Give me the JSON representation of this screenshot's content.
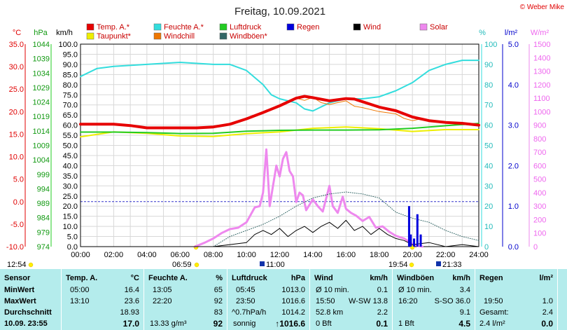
{
  "page": {
    "title": "Freitag, 10.09.2021",
    "copyright": "© Weber Mike"
  },
  "legend": [
    {
      "label": "Temp. A.*",
      "color": "#e60000"
    },
    {
      "label": "Feuchte A.*",
      "color": "#33dddd"
    },
    {
      "label": "Luftdruck",
      "color": "#22cc22"
    },
    {
      "label": "Regen",
      "color": "#0000dd"
    },
    {
      "label": "Wind",
      "color": "#000000"
    },
    {
      "label": "Solar",
      "color": "#ee88ee"
    },
    {
      "label": "Taupunkt*",
      "color": "#eeee00"
    },
    {
      "label": "Windchill",
      "color": "#ee7700"
    },
    {
      "label": "Windböen*",
      "color": "#336666"
    }
  ],
  "axes": {
    "units": {
      "temp": "°C",
      "hpa": "hPa",
      "kmh": "km/h",
      "pct": "%",
      "rain": "l/m²",
      "solar": "W/m²"
    },
    "temp_ticks": [
      "35.0",
      "30.0",
      "25.0",
      "20.0",
      "15.0",
      "10.0",
      "5.0",
      "0.0",
      "-5.0",
      "-10.0"
    ],
    "hpa_ticks": [
      "1044",
      "1039",
      "1034",
      "1029",
      "1024",
      "1019",
      "1014",
      "1009",
      "1004",
      "999",
      "994",
      "989",
      "984",
      "979",
      "974"
    ],
    "kmh_ticks": [
      "100.0",
      "95.0",
      "90.0",
      "85.0",
      "80.0",
      "75.0",
      "70.0",
      "65.0",
      "60.0",
      "55.0",
      "50.0",
      "45.0",
      "40.0",
      "35.0",
      "30.0",
      "25.0",
      "20.0",
      "15.0",
      "10.0",
      "5.0",
      "0.0"
    ],
    "pct_ticks": [
      "100",
      "90",
      "80",
      "70",
      "60",
      "50",
      "40",
      "30",
      "20",
      "10",
      "0"
    ],
    "rain_ticks": [
      "5.0",
      "4.0",
      "3.0",
      "2.0",
      "1.0",
      "0.0"
    ],
    "solar_ticks": [
      "1500",
      "1400",
      "1300",
      "1200",
      "1100",
      "1000",
      "900",
      "800",
      "700",
      "600",
      "500",
      "400",
      "300",
      "200",
      "100",
      "0"
    ],
    "time_ticks": [
      "00:00",
      "02:00",
      "04:00",
      "06:00",
      "08:00",
      "10:00",
      "12:00",
      "14:00",
      "16:00",
      "18:00",
      "20:00",
      "22:00",
      "24:00"
    ]
  },
  "sun_markers": {
    "left": "12:54",
    "rise": "06:59",
    "transit": "11:00",
    "set": "19:54",
    "night": "21:33"
  },
  "chart_data": {
    "type": "line",
    "x_range_hours": [
      0,
      24
    ],
    "temp_range": [
      -10,
      35
    ],
    "kmh_range": [
      0,
      100
    ],
    "series": [
      {
        "name": "Temp. A.*",
        "unit": "°C",
        "points": [
          [
            0,
            17.2
          ],
          [
            2,
            17.2
          ],
          [
            3,
            16.9
          ],
          [
            4,
            16.4
          ],
          [
            6,
            16.4
          ],
          [
            7,
            16.4
          ],
          [
            8,
            16.6
          ],
          [
            9,
            17.2
          ],
          [
            10,
            18.4
          ],
          [
            11,
            19.8
          ],
          [
            12,
            21.3
          ],
          [
            13,
            23.0
          ],
          [
            13.5,
            23.4
          ],
          [
            14,
            23.1
          ],
          [
            15,
            22.4
          ],
          [
            16,
            22.9
          ],
          [
            16.5,
            22.8
          ],
          [
            17,
            22.2
          ],
          [
            18,
            21.0
          ],
          [
            19,
            20.2
          ],
          [
            20,
            18.8
          ],
          [
            21,
            18.0
          ],
          [
            22,
            17.6
          ],
          [
            23,
            17.4
          ],
          [
            24,
            17.0
          ]
        ]
      },
      {
        "name": "Feuchte A.*",
        "unit": "%",
        "points": [
          [
            0,
            84
          ],
          [
            1,
            88
          ],
          [
            2,
            89
          ],
          [
            4,
            90
          ],
          [
            6,
            91
          ],
          [
            8,
            90
          ],
          [
            9,
            90
          ],
          [
            10,
            87
          ],
          [
            11,
            80
          ],
          [
            11.5,
            75
          ],
          [
            12,
            73
          ],
          [
            13,
            71
          ],
          [
            13.5,
            68
          ],
          [
            14,
            67
          ],
          [
            15,
            71
          ],
          [
            16,
            73
          ],
          [
            17,
            73
          ],
          [
            18,
            74
          ],
          [
            19,
            77
          ],
          [
            20,
            81
          ],
          [
            21,
            87
          ],
          [
            22,
            90
          ],
          [
            23,
            92
          ],
          [
            24,
            92
          ]
        ]
      },
      {
        "name": "Luftdruck",
        "unit": "hPa",
        "points": [
          [
            0,
            1013.6
          ],
          [
            2,
            1013.6
          ],
          [
            4,
            1013.4
          ],
          [
            6,
            1013.1
          ],
          [
            8,
            1013.2
          ],
          [
            10,
            1013.9
          ],
          [
            12,
            1014.2
          ],
          [
            14,
            1014.3
          ],
          [
            16,
            1014.3
          ],
          [
            18,
            1014.4
          ],
          [
            20,
            1014.9
          ],
          [
            22,
            1015.8
          ],
          [
            24,
            1016.6
          ]
        ]
      },
      {
        "name": "Taupunkt*",
        "unit": "°C",
        "points": [
          [
            0,
            14.4
          ],
          [
            2,
            15.5
          ],
          [
            4,
            15.2
          ],
          [
            6,
            14.6
          ],
          [
            8,
            14.5
          ],
          [
            10,
            15.1
          ],
          [
            12,
            15.5
          ],
          [
            14,
            16.3
          ],
          [
            16,
            16.6
          ],
          [
            18,
            16.2
          ],
          [
            20,
            15.6
          ],
          [
            22,
            16.0
          ],
          [
            24,
            16.0
          ]
        ]
      },
      {
        "name": "Windchill",
        "unit": "°C",
        "points": [
          [
            12,
            21.3
          ],
          [
            13,
            23.0
          ],
          [
            13.5,
            22.5
          ],
          [
            14,
            23.2
          ],
          [
            14.5,
            22.0
          ],
          [
            15,
            21.6
          ],
          [
            16,
            22.4
          ],
          [
            16.5,
            21.2
          ],
          [
            17,
            20.9
          ],
          [
            18,
            20.0
          ],
          [
            19,
            19.5
          ],
          [
            19.5,
            18.5
          ],
          [
            20,
            18.0
          ],
          [
            20.5,
            18.4
          ],
          [
            21,
            18.0
          ]
        ]
      },
      {
        "name": "Wind",
        "unit": "km/h",
        "points": [
          [
            0,
            0
          ],
          [
            6,
            0
          ],
          [
            8,
            0
          ],
          [
            9,
            1
          ],
          [
            10,
            2
          ],
          [
            10.5,
            6
          ],
          [
            11,
            8
          ],
          [
            11.5,
            6
          ],
          [
            12,
            9
          ],
          [
            12.5,
            5
          ],
          [
            13,
            8
          ],
          [
            13.5,
            10
          ],
          [
            14,
            7
          ],
          [
            14.5,
            10
          ],
          [
            15,
            12
          ],
          [
            15.5,
            9
          ],
          [
            16,
            13
          ],
          [
            16.5,
            8
          ],
          [
            17,
            10
          ],
          [
            17.5,
            6
          ],
          [
            18,
            9
          ],
          [
            18.5,
            6
          ],
          [
            19,
            4
          ],
          [
            19.5,
            3
          ],
          [
            20,
            1
          ],
          [
            21,
            2
          ],
          [
            22,
            0
          ],
          [
            23,
            1
          ],
          [
            24,
            0
          ]
        ]
      },
      {
        "name": "Windböen*",
        "unit": "km/h",
        "points": [
          [
            8,
            0
          ],
          [
            9,
            5
          ],
          [
            10,
            8
          ],
          [
            11,
            11
          ],
          [
            12,
            15
          ],
          [
            13,
            20
          ],
          [
            14,
            24
          ],
          [
            15,
            26
          ],
          [
            16,
            27
          ],
          [
            17,
            26
          ],
          [
            18,
            24
          ],
          [
            19,
            17
          ],
          [
            20,
            14
          ],
          [
            21,
            12
          ],
          [
            22,
            8
          ],
          [
            23,
            5
          ],
          [
            24,
            3
          ]
        ]
      },
      {
        "name": "Solar",
        "unit": "W/m²",
        "points": [
          [
            6.9,
            0
          ],
          [
            7.5,
            30
          ],
          [
            8,
            60
          ],
          [
            8.5,
            100
          ],
          [
            9,
            130
          ],
          [
            9.5,
            140
          ],
          [
            10,
            180
          ],
          [
            10.5,
            290
          ],
          [
            10.8,
            300
          ],
          [
            11,
            400
          ],
          [
            11.2,
            720
          ],
          [
            11.4,
            300
          ],
          [
            11.6,
            450
          ],
          [
            11.8,
            600
          ],
          [
            12,
            520
          ],
          [
            12.2,
            650
          ],
          [
            12.4,
            700
          ],
          [
            12.6,
            560
          ],
          [
            12.8,
            520
          ],
          [
            13,
            330
          ],
          [
            13.2,
            400
          ],
          [
            13.4,
            380
          ],
          [
            13.6,
            270
          ],
          [
            14,
            350
          ],
          [
            14.3,
            300
          ],
          [
            14.6,
            260
          ],
          [
            15,
            450
          ],
          [
            15.2,
            300
          ],
          [
            15.5,
            250
          ],
          [
            15.8,
            370
          ],
          [
            16,
            280
          ],
          [
            16.3,
            250
          ],
          [
            16.6,
            230
          ],
          [
            17,
            190
          ],
          [
            17.4,
            220
          ],
          [
            17.8,
            140
          ],
          [
            18.2,
            150
          ],
          [
            18.6,
            110
          ],
          [
            19,
            80
          ],
          [
            19.5,
            60
          ],
          [
            20,
            20
          ],
          [
            20.3,
            5
          ],
          [
            20.6,
            0
          ]
        ]
      },
      {
        "name": "Regen",
        "unit": "l/m²",
        "points": [
          [
            19.5,
            0
          ],
          [
            19.8,
            1.0
          ],
          [
            19.9,
            0.3
          ],
          [
            20.1,
            0.2
          ],
          [
            20.3,
            0.8
          ],
          [
            20.5,
            0.3
          ],
          [
            20.7,
            0
          ]
        ]
      }
    ]
  },
  "table": {
    "headers": {
      "sensor": "Sensor",
      "temp": "Temp. A.",
      "temp_u": "°C",
      "feuchte": "Feuchte A.",
      "feuchte_u": "%",
      "druck": "Luftdruck",
      "druck_u": "hPa",
      "wind": "Wind",
      "wind_u": "km/h",
      "boeen": "Windböen",
      "boeen_u": "km/h",
      "regen": "Regen",
      "regen_u": "l/m²"
    },
    "rows": {
      "min": {
        "label": "MinWert",
        "t_time": "05:00",
        "t_val": "16.4",
        "f_time": "13:05",
        "f_val": "65",
        "p_time": "05:45",
        "p_val": "1013.0",
        "w_desc": "Ø 10 min.",
        "w_val": "0.1",
        "b_desc": "Ø 10 min.",
        "b_val": "3.4"
      },
      "max": {
        "label": "MaxWert",
        "t_time": "13:10",
        "t_val": "23.6",
        "f_time": "22:20",
        "f_val": "92",
        "p_time": "23:50",
        "p_val": "1016.6",
        "w_time": "15:50",
        "w_desc": "W-SW 13.8",
        "b_time": "16:20",
        "b_desc": "S-SO 36.0",
        "r_time": "19:50",
        "r_val": "1.0"
      },
      "avg": {
        "label": "Durchschnitt",
        "t_val": "18.93",
        "f_val": "83",
        "p_desc": "^0.7hPa/h",
        "p_val": "1014.2",
        "w_desc": "52.8 km",
        "w_val": "2.2",
        "b_val": "9.1",
        "r_desc": "Gesamt:",
        "r_val": "2.4"
      },
      "cur": {
        "label": "10.09. 23:55",
        "t_val": "17.0",
        "f_desc": "13.33 g/m³",
        "f_val": "92",
        "p_desc": "sonnig",
        "p_val": "↑1016.6",
        "w_desc": "0 Bft",
        "w_val": "0.1",
        "b_desc": "1 Bft",
        "b_val": "4.5",
        "r_desc": "2.4 l/m²",
        "r_val": "0.0"
      }
    }
  }
}
